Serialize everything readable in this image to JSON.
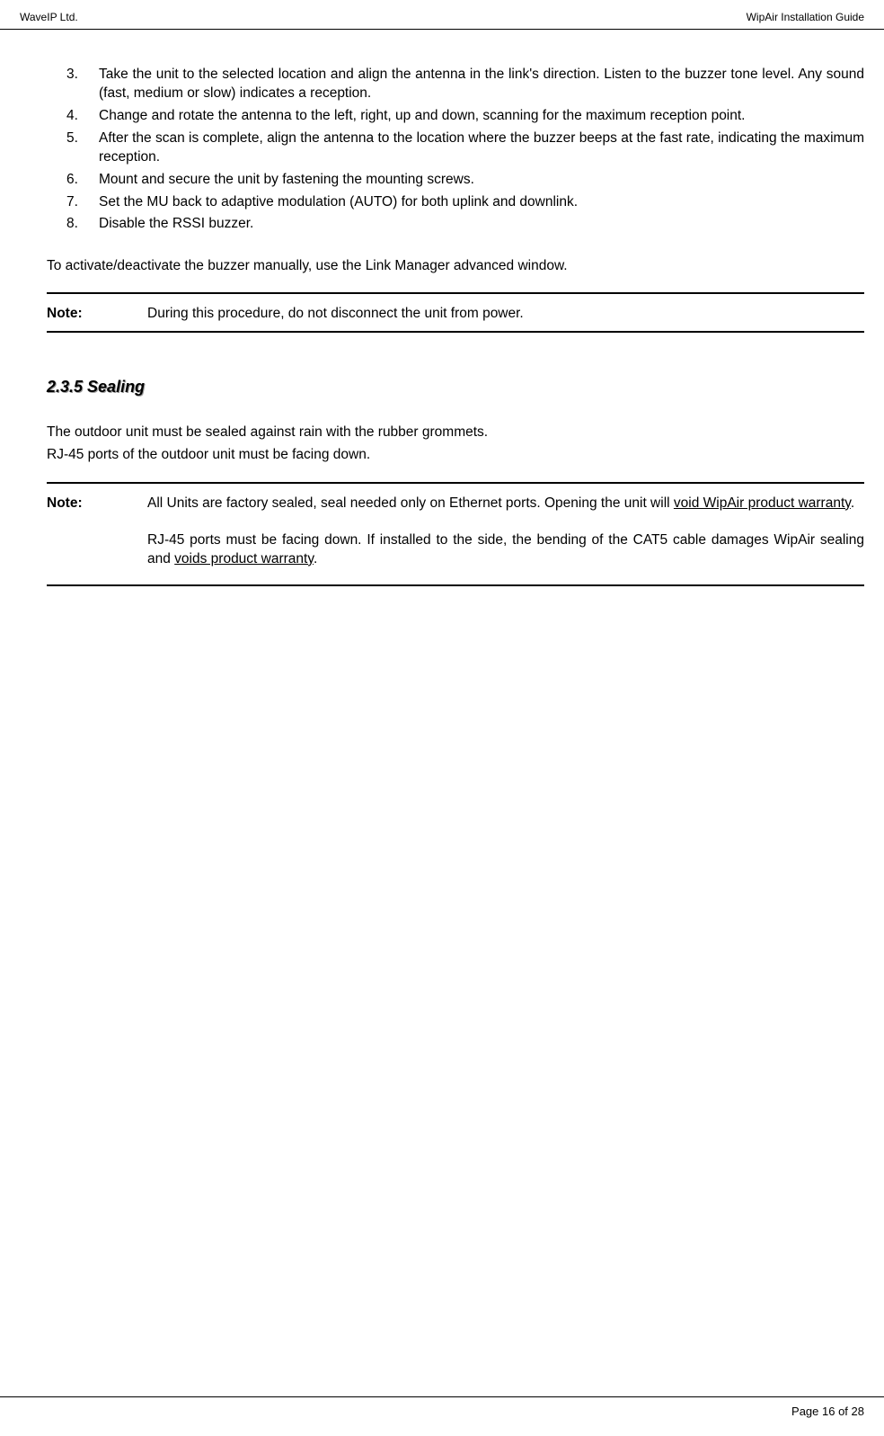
{
  "header": {
    "left": "WaveIP Ltd.",
    "right": "WipAir Installation Guide"
  },
  "list": {
    "items": [
      {
        "num": "3.",
        "text": "Take the unit to the selected location and align the antenna in the link's direction.  Listen to the buzzer tone level. Any sound (fast, medium or slow) indicates a reception."
      },
      {
        "num": "4.",
        "text": "Change and rotate the antenna to the left, right, up and down, scanning for the maximum reception point."
      },
      {
        "num": "5.",
        "text": "After the scan is complete, align the antenna to the location where the buzzer beeps at the fast rate, indicating the maximum reception."
      },
      {
        "num": "6.",
        "text": "Mount and secure the unit by fastening the mounting screws."
      },
      {
        "num": "7.",
        "text": "Set the MU back to adaptive modulation (AUTO) for both uplink and downlink."
      },
      {
        "num": "8.",
        "text": "Disable the RSSI buzzer."
      }
    ]
  },
  "activate_text": "To activate/deactivate the buzzer manually, use the Link Manager advanced window.",
  "note1": {
    "label": "Note:",
    "text": "During this procedure, do not disconnect the unit from power."
  },
  "section": {
    "heading": "2.3.5 Sealing",
    "line1": "The outdoor unit must be sealed against rain with the rubber grommets.",
    "line2": "RJ-45 ports of the outdoor unit must be facing down."
  },
  "note2": {
    "label": "Note:",
    "para1_pre": "All Units are factory sealed, seal needed only on Ethernet ports. Opening the unit will ",
    "para1_underline": "void WipAir product warranty",
    "para1_post": ".",
    "para2_pre": "RJ-45 ports must be facing down. If installed to the side, the bending of the CAT5 cable damages WipAir sealing and ",
    "para2_underline": "voids product warranty",
    "para2_post": "."
  },
  "footer": {
    "page": "Page 16 of 28"
  }
}
